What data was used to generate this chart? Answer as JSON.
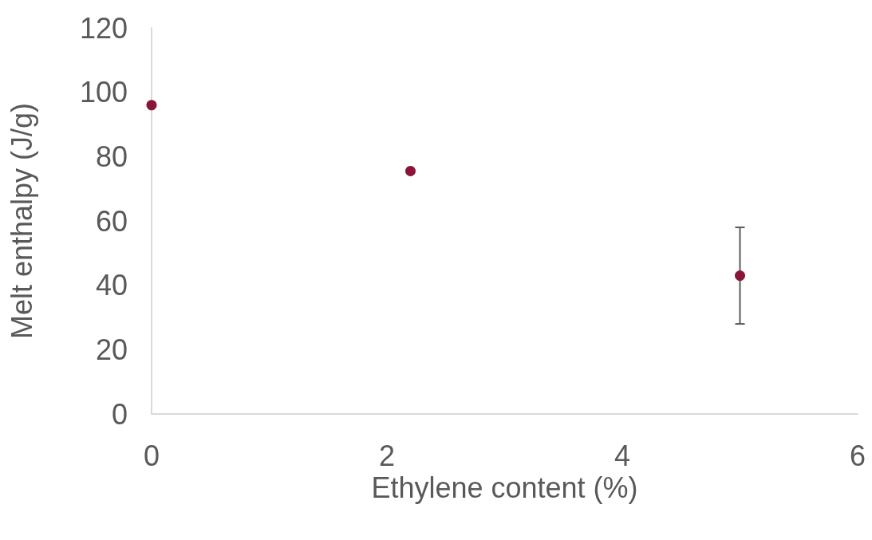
{
  "chart_data": {
    "type": "scatter",
    "xlabel": "Ethylene content (%)",
    "ylabel": "Melt enthalpy (J/g)",
    "x": [
      0,
      2.2,
      5
    ],
    "series": [
      {
        "color": "#8b1538",
        "values": [
          96,
          75.5,
          43
        ],
        "errors": [
          null,
          null,
          15
        ]
      }
    ],
    "xlim": [
      0,
      6
    ],
    "xticks": [
      0,
      2,
      4,
      6
    ],
    "ylim": [
      0,
      120
    ],
    "yticks": [
      0,
      20,
      40,
      60,
      80,
      100,
      120
    ],
    "grid": false,
    "marker": "circle"
  }
}
